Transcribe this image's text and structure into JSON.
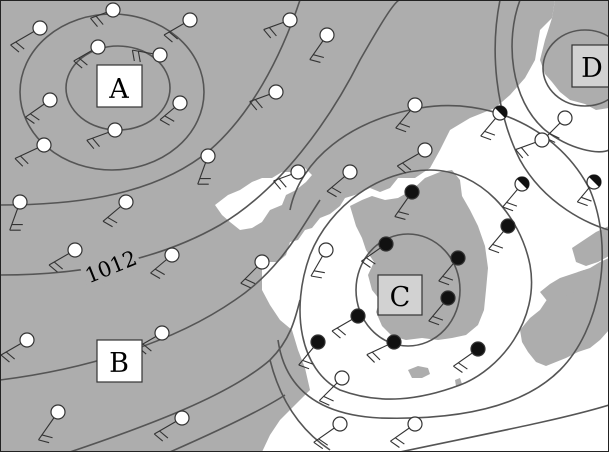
{
  "map": {
    "colors": {
      "sea": "#ffffff",
      "land": "#adadad",
      "land_shadow": "#8f8f8f",
      "isobar": "#555555",
      "station_ink": "#333333",
      "label_box_fill": "#ffffff",
      "label_box_fill_alt": "#d2d2d2"
    },
    "pressure_centers": [
      {
        "id": "A",
        "label": "A"
      },
      {
        "id": "B",
        "label": "B"
      },
      {
        "id": "C",
        "label": "C"
      },
      {
        "id": "D",
        "label": "D"
      }
    ],
    "isobar_value_label": "1012",
    "station_legend": {
      "open_circle": "clear",
      "filled_circle": "overcast",
      "half_circle": "partly-cloudy"
    },
    "wind_barb_icon": "wind-barb-icon"
  }
}
